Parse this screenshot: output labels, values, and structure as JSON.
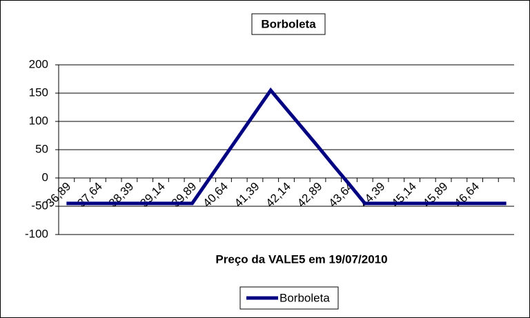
{
  "chart_data": {
    "type": "line",
    "title": "Borboleta",
    "x_label": "Preço da VALE5 em 19/07/2010",
    "categories": [
      "36,89",
      null,
      "37,64",
      null,
      "38,39",
      null,
      "39,14",
      null,
      "39,89",
      null,
      "40,64",
      null,
      "41,39",
      null,
      "42,14",
      null,
      "42,89",
      null,
      "43,64",
      null,
      "44,39",
      null,
      "45,14",
      null,
      "45,89",
      null,
      "46,64",
      null,
      null
    ],
    "series": [
      {
        "name": "Borboleta",
        "color": "#000080",
        "values": [
          -45,
          -45,
          -45,
          -45,
          -45,
          -45,
          -45,
          -45,
          -45,
          -5,
          35,
          75,
          115,
          155,
          122,
          89,
          56,
          22,
          -11,
          -45,
          -45,
          -45,
          -45,
          -45,
          -45,
          -45,
          -45,
          -45,
          -45
        ]
      }
    ],
    "ylim": [
      -100,
      200
    ],
    "yticks": [
      -100,
      -50,
      0,
      50,
      100,
      150,
      200
    ],
    "grid": true,
    "legend": "bottom"
  }
}
